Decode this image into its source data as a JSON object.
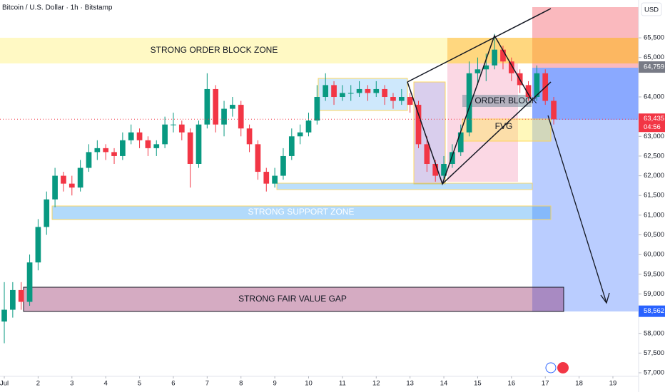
{
  "chart_data": {
    "type": "candlestick",
    "title": "Bitcoin / U.S. Dollar · 1h · Bitstamp",
    "currency": "USD",
    "up_color": "#089981",
    "down_color": "#f23645",
    "grid": false,
    "xlim": [
      0.873,
      19.76
    ],
    "ylim": [
      56910,
      66460
    ],
    "xticks": [
      {
        "value": 1,
        "label": "Jul"
      },
      2,
      3,
      4,
      5,
      6,
      7,
      8,
      9,
      10,
      11,
      12,
      13,
      14,
      15,
      16,
      17,
      18,
      19
    ],
    "yticks": [
      {
        "value": 57000,
        "label": "57,000"
      },
      {
        "value": 57500,
        "label": "57,500"
      },
      {
        "value": 58000,
        "label": "58,000"
      },
      {
        "value": 59000,
        "label": "59,000"
      },
      {
        "value": 59500,
        "label": "59,500"
      },
      {
        "value": 60000,
        "label": "60,000"
      },
      {
        "value": 60500,
        "label": "60,500"
      },
      {
        "value": 61000,
        "label": "61,000"
      },
      {
        "value": 61500,
        "label": "61,500"
      },
      {
        "value": 62000,
        "label": "62,000"
      },
      {
        "value": 62500,
        "label": "62,500"
      },
      {
        "value": 63000,
        "label": "63,000"
      },
      {
        "value": 64000,
        "label": "64,000"
      },
      {
        "value": 65000,
        "label": "65,000"
      },
      {
        "value": 65500,
        "label": "65,500"
      }
    ],
    "x": [
      1,
      1.25,
      1.5,
      1.75,
      2,
      2.25,
      2.5,
      2.75,
      3,
      3.25,
      3.5,
      3.75,
      4,
      4.25,
      4.5,
      4.75,
      5,
      5.25,
      5.5,
      5.75,
      6,
      6.25,
      6.5,
      6.75,
      7,
      7.25,
      7.5,
      7.75,
      8,
      8.25,
      8.5,
      8.75,
      9,
      9.25,
      9.5,
      9.75,
      10,
      10.25,
      10.5,
      10.75,
      11,
      11.25,
      11.5,
      11.75,
      12,
      12.25,
      12.5,
      12.75,
      13,
      13.25,
      13.5,
      13.75,
      14,
      14.25,
      14.5,
      14.75,
      15,
      15.25,
      15.5,
      15.75,
      16,
      16.25,
      16.5,
      16.75,
      17,
      17.25
    ],
    "candles": [
      [
        58300,
        59300,
        57750,
        58600
      ],
      [
        58600,
        59300,
        58400,
        59100
      ],
      [
        59100,
        59300,
        58600,
        58800
      ],
      [
        58800,
        60000,
        58700,
        59800
      ],
      [
        59800,
        60900,
        59600,
        60700
      ],
      [
        60700,
        61600,
        60500,
        61400
      ],
      [
        61400,
        62200,
        61200,
        62000
      ],
      [
        62000,
        62100,
        61600,
        61800
      ],
      [
        61800,
        62000,
        61500,
        61700
      ],
      [
        61700,
        62400,
        61600,
        62200
      ],
      [
        62200,
        62800,
        62100,
        62600
      ],
      [
        62600,
        62900,
        62400,
        62700
      ],
      [
        62700,
        62800,
        62400,
        62600
      ],
      [
        62600,
        62700,
        62300,
        62500
      ],
      [
        62500,
        63100,
        62400,
        62900
      ],
      [
        62900,
        63300,
        62800,
        63100
      ],
      [
        63100,
        63200,
        62700,
        62900
      ],
      [
        62900,
        63000,
        62500,
        62700
      ],
      [
        62700,
        62900,
        62500,
        62800
      ],
      [
        62800,
        63500,
        62700,
        63300
      ],
      [
        63300,
        63600,
        63100,
        63300
      ],
      [
        63300,
        63400,
        62900,
        63100
      ],
      [
        63100,
        63200,
        61700,
        62300
      ],
      [
        62300,
        63400,
        62200,
        63300
      ],
      [
        63300,
        64600,
        63200,
        64200
      ],
      [
        64200,
        64300,
        63100,
        63300
      ],
      [
        63300,
        63900,
        63000,
        63700
      ],
      [
        63700,
        64000,
        63500,
        63800
      ],
      [
        63800,
        63900,
        63000,
        63200
      ],
      [
        63200,
        63300,
        62600,
        62800
      ],
      [
        62800,
        62900,
        61900,
        62100
      ],
      [
        62100,
        62200,
        61600,
        61800
      ],
      [
        61800,
        62200,
        61700,
        62000
      ],
      [
        62000,
        62700,
        61900,
        62500
      ],
      [
        62500,
        63200,
        62400,
        63000
      ],
      [
        63000,
        63300,
        62800,
        63100
      ],
      [
        63100,
        63600,
        63000,
        63400
      ],
      [
        63400,
        64300,
        63300,
        64000
      ],
      [
        64000,
        64600,
        63900,
        64300
      ],
      [
        64300,
        64400,
        63800,
        64000
      ],
      [
        64000,
        64300,
        63900,
        64100
      ],
      [
        64100,
        64300,
        63900,
        64100
      ],
      [
        64100,
        64400,
        64000,
        64200
      ],
      [
        64200,
        64300,
        63900,
        64100
      ],
      [
        64100,
        64400,
        64000,
        64200
      ],
      [
        64200,
        64300,
        63800,
        64000
      ],
      [
        64000,
        64100,
        63700,
        63900
      ],
      [
        63900,
        64200,
        63800,
        64000
      ],
      [
        64000,
        64100,
        63600,
        63800
      ],
      [
        63800,
        63900,
        62700,
        62800
      ],
      [
        62800,
        63000,
        62100,
        62300
      ],
      [
        62300,
        62400,
        61850,
        62000
      ],
      [
        62000,
        62500,
        61900,
        62300
      ],
      [
        62300,
        62800,
        62200,
        62600
      ],
      [
        62600,
        63300,
        62500,
        63100
      ],
      [
        63100,
        64900,
        63000,
        64600
      ],
      [
        64600,
        65000,
        64300,
        64700
      ],
      [
        64700,
        65100,
        64400,
        64800
      ],
      [
        64800,
        65600,
        64700,
        65200
      ],
      [
        65200,
        65300,
        64700,
        64900
      ],
      [
        64900,
        65000,
        64400,
        64600
      ],
      [
        64600,
        64700,
        64100,
        64300
      ],
      [
        64300,
        64400,
        63900,
        64000
      ],
      [
        64000,
        64800,
        63900,
        64600
      ],
      [
        64600,
        64700,
        63800,
        63900
      ],
      [
        63900,
        64000,
        63300,
        63435
      ]
    ],
    "price_labels": [
      {
        "value": 64759,
        "label": "64,759",
        "color": "#787b86"
      },
      {
        "value": 63435,
        "label": "63,435",
        "sublabel": "04:56",
        "color": "#f23645"
      },
      {
        "value": 58562,
        "label": "58,562",
        "color": "#2962ff"
      }
    ],
    "zones": [
      "STRONG ORDER BLOCK ZONE",
      "ORDER BLOCK",
      "FVG",
      "STRONG SUPPORT ZONE",
      "STRONG FAIR VALUE GAP"
    ]
  }
}
